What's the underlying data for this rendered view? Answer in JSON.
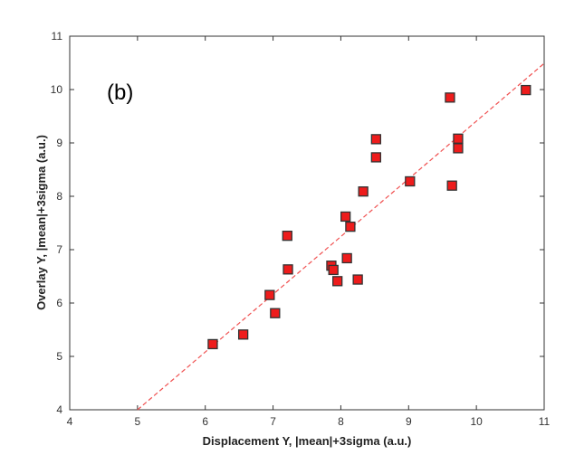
{
  "chart_data": {
    "type": "scatter",
    "panel_label": "(b)",
    "xlabel": "Displacement Y, |mean|+3sigma (a.u.)",
    "ylabel": "Overlay Y, |mean|+3sigma (a.u.)",
    "xlim": [
      4,
      11
    ],
    "ylim": [
      4,
      11
    ],
    "xticks": [
      "4",
      "5",
      "6",
      "7",
      "8",
      "9",
      "10",
      "11"
    ],
    "yticks": [
      "4",
      "5",
      "6",
      "7",
      "8",
      "9",
      "10",
      "11"
    ],
    "grid": false,
    "marker_color": "#ee1c1c",
    "line_color": "#f05050",
    "points": [
      [
        6.11,
        5.23
      ],
      [
        6.56,
        5.41
      ],
      [
        6.95,
        6.15
      ],
      [
        7.03,
        5.81
      ],
      [
        7.21,
        7.26
      ],
      [
        7.22,
        6.63
      ],
      [
        7.86,
        6.7
      ],
      [
        7.89,
        6.62
      ],
      [
        7.95,
        6.41
      ],
      [
        8.09,
        6.84
      ],
      [
        8.25,
        6.44
      ],
      [
        8.07,
        7.62
      ],
      [
        8.14,
        7.43
      ],
      [
        8.33,
        8.09
      ],
      [
        8.52,
        9.07
      ],
      [
        8.52,
        8.73
      ],
      [
        9.02,
        8.28
      ],
      [
        9.61,
        9.85
      ],
      [
        9.64,
        8.2
      ],
      [
        9.73,
        9.08
      ],
      [
        9.73,
        8.9
      ],
      [
        10.73,
        9.99
      ]
    ],
    "fit_line": {
      "style": "dashed",
      "points": [
        [
          5,
          4
        ],
        [
          11,
          10.49
        ]
      ]
    }
  }
}
